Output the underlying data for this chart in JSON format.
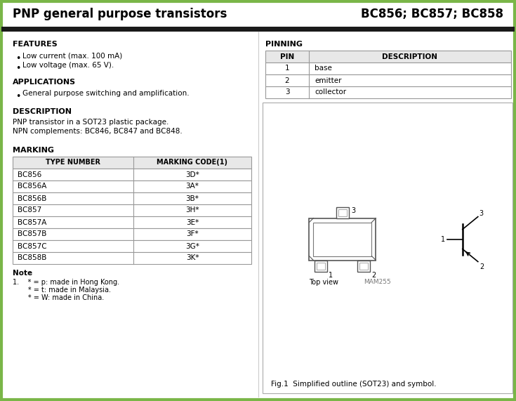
{
  "title_left": "PNP general purpose transistors",
  "title_right": "BC856; BC857; BC858",
  "features_title": "FEATURES",
  "features": [
    "Low current (max. 100 mA)",
    "Low voltage (max. 65 V)."
  ],
  "applications_title": "APPLICATIONS",
  "applications": [
    "General purpose switching and amplification."
  ],
  "description_title": "DESCRIPTION",
  "description_lines": [
    "PNP transistor in a SOT23 plastic package.",
    "NPN complements: BC846, BC847 and BC848."
  ],
  "marking_title": "MARKING",
  "marking_col1": "TYPE NUMBER",
  "marking_col2": "MARKING CODE(1)",
  "marking_rows": [
    [
      "BC856",
      "3D*"
    ],
    [
      "BC856A",
      "3A*"
    ],
    [
      "BC856B",
      "3B*"
    ],
    [
      "BC857",
      "3H*"
    ],
    [
      "BC857A",
      "3E*"
    ],
    [
      "BC857B",
      "3F*"
    ],
    [
      "BC857C",
      "3G*"
    ],
    [
      "BC858B",
      "3K*"
    ]
  ],
  "note_title": "Note",
  "note_lines": [
    "1.    * = p: made in Hong Kong.",
    "       * = t: made in Malaysia.",
    "       * = W: made in China."
  ],
  "pinning_title": "PINNING",
  "pin_col1": "PIN",
  "pin_col2": "DESCRIPTION",
  "pins": [
    [
      "1",
      "base"
    ],
    [
      "2",
      "emitter"
    ],
    [
      "3",
      "collector"
    ]
  ],
  "fig_caption": "Fig.1  Simplified outline (SOT23) and symbol.",
  "mam_label": "MAM255",
  "outer_border_color": "#7ab648",
  "bg_color": "#ffffff",
  "header_bg": "#ffffff",
  "sep_bar_color": "#1a1a1a",
  "table_header_bg": "#e8e8e8",
  "table_border": "#999999"
}
